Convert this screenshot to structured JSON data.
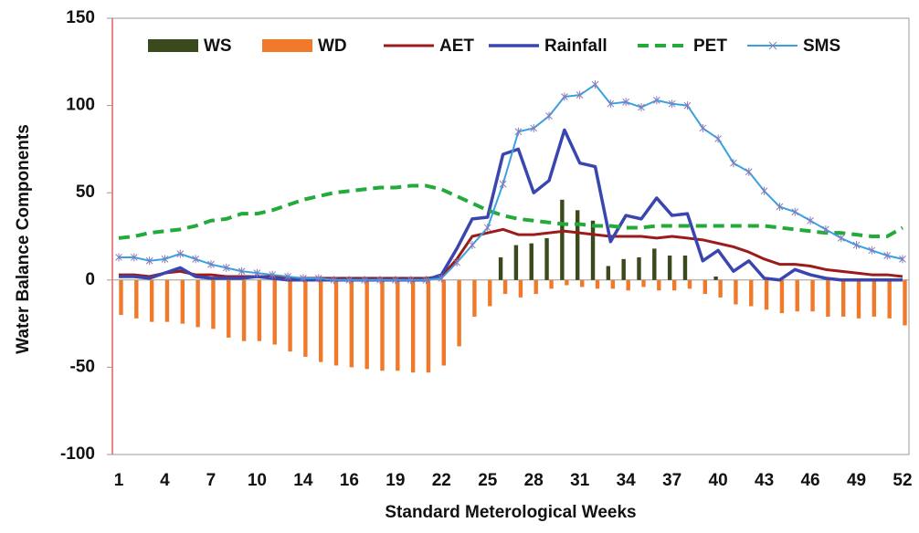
{
  "chart_data": {
    "type": "combo",
    "xlabel": "Standard Meterological Weeks",
    "ylabel": "Water Balance Components",
    "categories": [
      "1",
      null,
      null,
      "4",
      null,
      null,
      "7",
      null,
      null,
      "10",
      null,
      null,
      "14",
      null,
      null,
      "16",
      null,
      null,
      "19",
      null,
      null,
      "22",
      null,
      null,
      "25",
      null,
      null,
      "28",
      null,
      null,
      "31",
      null,
      null,
      "34",
      null,
      null,
      "37",
      null,
      null,
      "40",
      null,
      null,
      "43",
      null,
      null,
      "46",
      null,
      null,
      "49",
      null,
      null,
      "52"
    ],
    "ylim": [
      -100,
      150
    ],
    "yticks": [
      -100,
      -50,
      0,
      50,
      100,
      150
    ],
    "series": [
      {
        "name": "WS",
        "kind": "bar",
        "color": "#3b4a1c",
        "values": [
          0,
          0,
          0,
          0,
          0,
          0,
          0,
          0,
          0,
          0,
          0,
          0,
          0,
          0,
          0,
          0,
          0,
          0,
          0,
          0,
          0,
          0,
          0,
          0,
          0,
          13,
          20,
          21,
          24,
          46,
          40,
          34,
          8,
          12,
          13,
          18,
          14,
          14,
          0,
          2,
          0,
          0,
          0,
          0,
          0,
          0,
          0,
          0,
          0,
          0,
          0,
          0
        ]
      },
      {
        "name": "WD",
        "kind": "bar",
        "color": "#f07a2a",
        "values": [
          -20,
          -22,
          -24,
          -24,
          -25,
          -27,
          -28,
          -33,
          -35,
          -35,
          -37,
          -41,
          -44,
          -47,
          -49,
          -50,
          -51,
          -52,
          -52,
          -53,
          -53,
          -49,
          -38,
          -21,
          -15,
          -8,
          -10,
          -8,
          -5,
          -3,
          -4,
          -5,
          -5,
          -6,
          -4,
          -6,
          -6,
          -5,
          -8,
          -10,
          -14,
          -15,
          -17,
          -19,
          -18,
          -18,
          -21,
          -21,
          -22,
          -21,
          -22,
          -26
        ]
      },
      {
        "name": "AET",
        "kind": "line",
        "color": "#9c1c1c",
        "width": 3,
        "values": [
          3,
          3,
          2,
          4,
          5,
          3,
          3,
          2,
          2,
          2,
          2,
          1,
          1,
          1,
          1,
          1,
          1,
          1,
          1,
          1,
          1,
          2,
          12,
          25,
          27,
          29,
          26,
          26,
          27,
          28,
          27,
          26,
          25,
          25,
          25,
          24,
          25,
          24,
          23,
          21,
          19,
          16,
          12,
          9,
          9,
          8,
          6,
          5,
          4,
          3,
          3,
          2
        ]
      },
      {
        "name": "Rainfall",
        "kind": "line",
        "color": "#3a46b0",
        "width": 3.5,
        "values": [
          2,
          2,
          1,
          4,
          7,
          2,
          1,
          1,
          1,
          2,
          1,
          0,
          0,
          0,
          0,
          0,
          0,
          0,
          0,
          0,
          0,
          3,
          18,
          35,
          36,
          72,
          75,
          50,
          57,
          86,
          67,
          65,
          22,
          37,
          35,
          47,
          37,
          38,
          11,
          17,
          5,
          11,
          1,
          0,
          6,
          3,
          1,
          0,
          0,
          0,
          0,
          0
        ]
      },
      {
        "name": "PET",
        "kind": "line",
        "color": "#22aa3a",
        "width": 4,
        "dashed": true,
        "values": [
          24,
          25,
          27,
          28,
          29,
          31,
          34,
          35,
          38,
          38,
          40,
          43,
          46,
          48,
          50,
          51,
          52,
          53,
          53,
          54,
          54,
          52,
          48,
          44,
          40,
          37,
          35,
          34,
          33,
          32,
          32,
          31,
          31,
          30,
          30,
          31,
          31,
          31,
          31,
          31,
          31,
          31,
          31,
          30,
          29,
          28,
          27,
          27,
          26,
          25,
          25,
          30
        ]
      },
      {
        "name": "SMS",
        "kind": "line",
        "color": "#3aa0e0",
        "width": 2,
        "marker": "star",
        "values": [
          13,
          13,
          11,
          12,
          15,
          12,
          9,
          7,
          5,
          4,
          3,
          2,
          1,
          1,
          0,
          0,
          0,
          0,
          0,
          0,
          0,
          1,
          10,
          20,
          30,
          55,
          85,
          87,
          94,
          105,
          106,
          112,
          101,
          102,
          99,
          103,
          101,
          100,
          87,
          81,
          67,
          62,
          51,
          42,
          39,
          34,
          29,
          24,
          20,
          17,
          14,
          12
        ]
      }
    ]
  }
}
